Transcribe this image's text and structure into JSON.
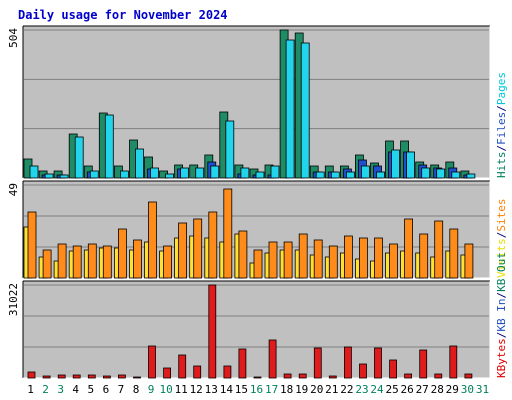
{
  "chart_data": {
    "type": "bar",
    "title": "Daily usage for November 2024",
    "categories": [
      "1",
      "2",
      "3",
      "4",
      "5",
      "6",
      "7",
      "8",
      "9",
      "10",
      "11",
      "12",
      "13",
      "14",
      "15",
      "16",
      "17",
      "18",
      "19",
      "20",
      "21",
      "22",
      "23",
      "24",
      "25",
      "26",
      "27",
      "28",
      "29",
      "30",
      "31"
    ],
    "weekend_days": [
      "2",
      "3",
      "9",
      "10",
      "16",
      "17",
      "23",
      "24",
      "30",
      "31"
    ],
    "panels": [
      {
        "name": "requests",
        "ymax_label": "504",
        "ylim": [
          0,
          504
        ],
        "side_labels": [
          {
            "text": "Hits",
            "color": "#00805c"
          },
          {
            "text": "/",
            "color": "#000080"
          },
          {
            "text": "Files",
            "color": "#2050c0"
          },
          {
            "text": "/",
            "color": "#000080"
          },
          {
            "text": "Pages",
            "color": "#00c8d8"
          }
        ],
        "series": [
          {
            "name": "Hits",
            "color": "#1f8c66",
            "values": [
              63,
              25,
              25,
              150,
              41,
              222,
              41,
              130,
              70,
              25,
              45,
              45,
              80,
              225,
              45,
              30,
              45,
              504,
              495,
              40,
              40,
              40,
              80,
              50,
              125,
              125,
              55,
              45,
              55,
              25,
              0
            ]
          },
          {
            "name": "Files",
            "color": "#1f4fcf",
            "values": [
              0,
              10,
              10,
              0,
              20,
              0,
              0,
              0,
              30,
              0,
              30,
              0,
              55,
              0,
              15,
              10,
              10,
              0,
              0,
              20,
              20,
              30,
              60,
              40,
              90,
              90,
              45,
              35,
              35,
              10,
              0
            ]
          },
          {
            "name": "Pages",
            "color": "#22d4ec",
            "values": [
              40,
              15,
              10,
              140,
              25,
              215,
              25,
              100,
              35,
              15,
              35,
              35,
              40,
              195,
              35,
              20,
              40,
              470,
              460,
              20,
              20,
              20,
              40,
              20,
              95,
              90,
              35,
              30,
              20,
              15,
              0
            ]
          }
        ]
      },
      {
        "name": "visits",
        "ymax_label": "49",
        "ylim": [
          0,
          49
        ],
        "side_labels": [
          {
            "text": "Visits",
            "color": "#e8e000"
          },
          {
            "text": "/",
            "color": "#000080"
          },
          {
            "text": "Sites",
            "color": "#ff8000"
          }
        ],
        "series": [
          {
            "name": "Visits",
            "color": "#ffe033",
            "values": [
              27,
              11,
              9,
              14,
              15,
              16,
              16,
              15,
              19,
              14,
              21,
              22,
              21,
              19,
              23,
              8,
              13,
              15,
              15,
              12,
              11,
              13,
              10,
              9,
              13,
              14,
              13,
              11,
              14,
              12,
              0
            ]
          },
          {
            "name": "Sites",
            "color": "#ff8c1a",
            "values": [
              35,
              15,
              18,
              17,
              18,
              17,
              26,
              20,
              40,
              17,
              29,
              31,
              35,
              47,
              25,
              15,
              19,
              19,
              23,
              20,
              17,
              22,
              21,
              21,
              18,
              31,
              23,
              30,
              26,
              18,
              0
            ]
          }
        ]
      },
      {
        "name": "kbytes",
        "ymax_label": "31022",
        "ylim": [
          0,
          31022
        ],
        "side_labels": [
          {
            "text": "KBytes",
            "color": "#e00000"
          },
          {
            "text": "/",
            "color": "#000080"
          },
          {
            "text": "KB In",
            "color": "#2050c0"
          },
          {
            "text": "/",
            "color": "#000080"
          },
          {
            "text": "KB Out",
            "color": "#00805c"
          }
        ],
        "series": [
          {
            "name": "KBytes",
            "color": "#e01b1b",
            "values": [
              1900,
              600,
              1000,
              1100,
              1000,
              800,
              900,
              500,
              10700,
              3500,
              7800,
              4000,
              31022,
              4000,
              9700,
              500,
              12800,
              1500,
              1500,
              10100,
              800,
              10300,
              4800,
              10000,
              6000,
              1500,
              9500,
              1500,
              10700,
              1500,
              0
            ]
          }
        ]
      }
    ]
  }
}
